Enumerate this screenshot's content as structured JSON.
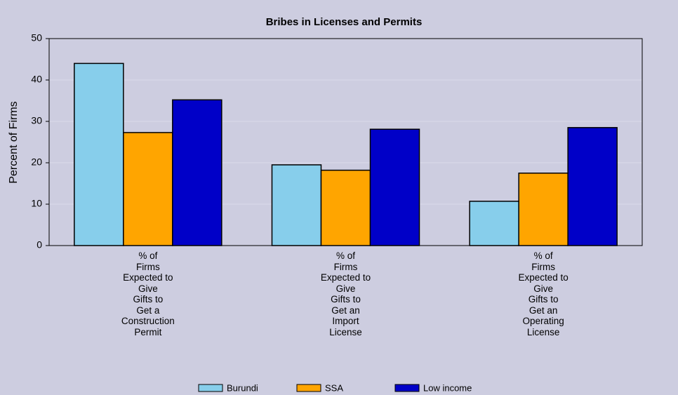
{
  "chart_data": {
    "type": "bar",
    "title": "Bribes in Licenses and Permits",
    "ylabel": "Percent of Firms",
    "categories": [
      "% of\nFirms\nExpected to\nGive\nGifts to\nGet a\nConstruction\nPermit",
      "% of\nFirms\nExpected to\nGive\nGifts to\nGet an\nImport\nLicense",
      "% of\nFirms\nExpected to\nGive\nGifts to\nGet an\nOperating\nLicense"
    ],
    "series": [
      {
        "name": "Burundi",
        "color": "#87ceeb",
        "values": [
          44,
          19.5,
          10.7
        ]
      },
      {
        "name": "SSA",
        "color": "#ffa500",
        "values": [
          27.3,
          18.2,
          17.5
        ]
      },
      {
        "name": "Low income",
        "color": "#0000c8",
        "values": [
          35.2,
          28.1,
          28.5
        ]
      }
    ],
    "ylim": [
      0,
      50
    ],
    "yticks": [
      0,
      10,
      20,
      30,
      40,
      50
    ],
    "grid": true,
    "legend": "bottom"
  }
}
